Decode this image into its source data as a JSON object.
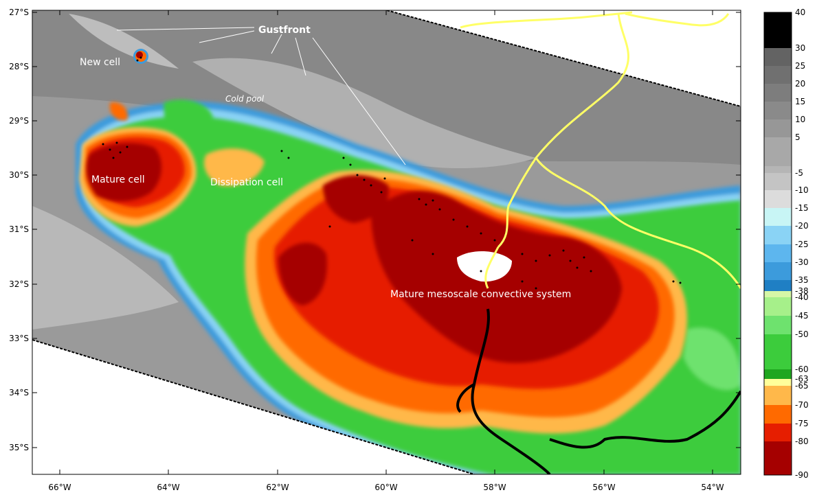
{
  "map": {
    "lat_ticks": [
      "27°S",
      "28°S",
      "29°S",
      "30°S",
      "31°S",
      "32°S",
      "33°S",
      "34°S",
      "35°S"
    ],
    "lon_ticks": [
      "66°W",
      "64°W",
      "62°W",
      "60°W",
      "58°W",
      "56°W",
      "54°W"
    ],
    "annotations": {
      "gustfront": "Gustfront",
      "new_cell": "New cell",
      "cold_pool": "Cold pool",
      "mature_cell": "Mature cell",
      "dissipation_cell": "Dissipation cell",
      "mcs": "Mature mesoscale convective system"
    }
  },
  "colorbar": {
    "bands": [
      {
        "label": "40",
        "color": "#000000"
      },
      {
        "label": "30",
        "color": "#636363"
      },
      {
        "label": "25",
        "color": "#707070"
      },
      {
        "label": "20",
        "color": "#7d7d7d"
      },
      {
        "label": "15",
        "color": "#8a8a8a"
      },
      {
        "label": "10",
        "color": "#979797"
      },
      {
        "label": "5",
        "color": "#a8a8a8"
      },
      {
        "label": "",
        "color": "#b5b5b5"
      },
      {
        "label": "-5",
        "color": "#c4c4c4"
      },
      {
        "label": "-10",
        "color": "#dcdcdc"
      },
      {
        "label": "-15",
        "color": "#c8f5f5"
      },
      {
        "label": "-20",
        "color": "#8ad3f5"
      },
      {
        "label": "-25",
        "color": "#5db6ee"
      },
      {
        "label": "-30",
        "color": "#3c9bdc"
      },
      {
        "label": "-35",
        "color": "#1f7fc4"
      },
      {
        "label": "-38",
        "color": "#d6f7a6"
      },
      {
        "label": "-40",
        "color": "#a6f08a"
      },
      {
        "label": "-45",
        "color": "#6ee26e"
      },
      {
        "label": "-50",
        "color": "#3ccc3c"
      },
      {
        "label": "-60",
        "color": "#1fa61f"
      },
      {
        "label": "-63",
        "color": "#ffff9a"
      },
      {
        "label": "-65",
        "color": "#ffb84a"
      },
      {
        "label": "-70",
        "color": "#ff6a00"
      },
      {
        "label": "-75",
        "color": "#e61e00"
      },
      {
        "label": "-80",
        "color": "#a50000"
      },
      {
        "label": "-90",
        "color": "#a50000"
      }
    ]
  }
}
